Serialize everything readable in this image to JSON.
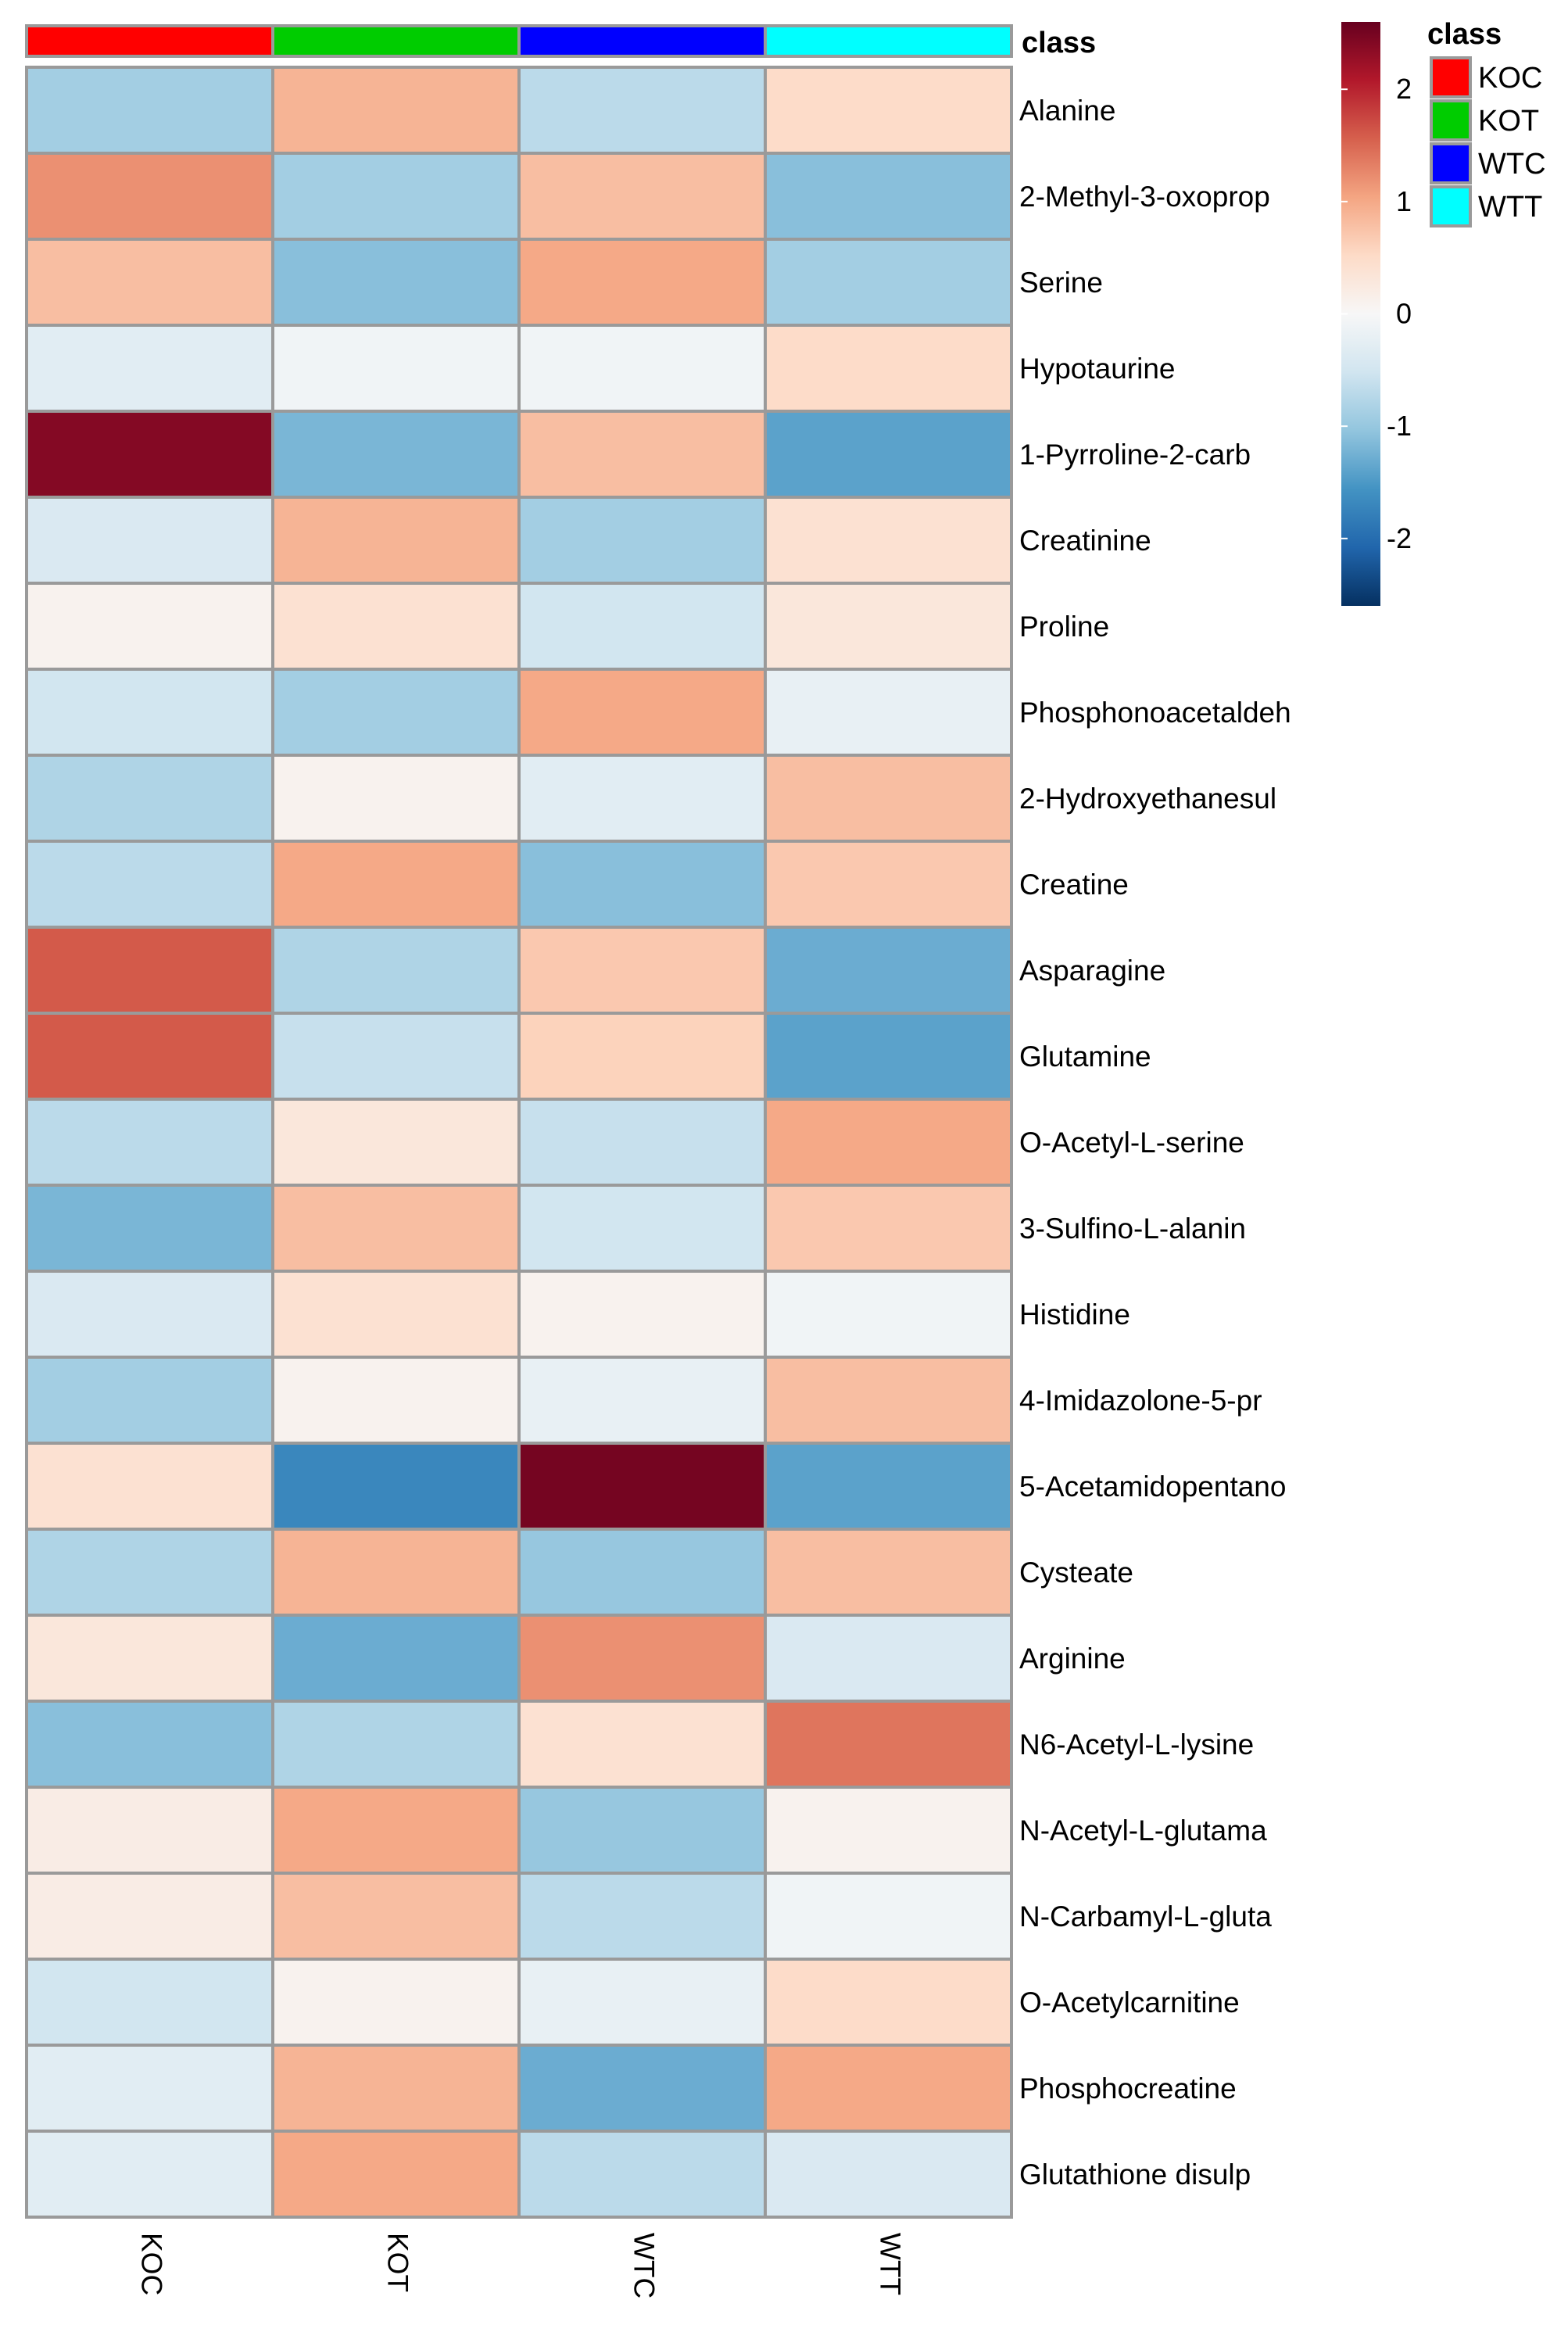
{
  "chart_data": {
    "type": "heatmap",
    "title": "",
    "columns": [
      "KOC",
      "KOT",
      "WTC",
      "WTT"
    ],
    "column_class": [
      "KOC",
      "KOT",
      "WTC",
      "WTT"
    ],
    "class_annotation_label": "class",
    "rows": [
      "Alanine",
      "2-Methyl-3-oxoprop",
      "Serine",
      "Hypotaurine",
      "1-Pyrroline-2-carb",
      "Creatinine",
      "Proline",
      "Phosphonoacetaldeh",
      "2-Hydroxyethanesul",
      "Creatine",
      "Asparagine",
      "Glutamine",
      "O-Acetyl-L-serine",
      "3-Sulfino-L-alanin",
      "Histidine",
      "4-Imidazolone-5-pr",
      "5-Acetamidopentano",
      "Cysteate",
      "Arginine",
      "N6-Acetyl-L-lysine",
      "N-Acetyl-L-glutama",
      "N-Carbamyl-L-gluta",
      "O-Acetylcarnitine",
      "Phosphocreatine",
      "Glutathione disulp"
    ],
    "values": [
      [
        -0.9,
        0.9,
        -0.7,
        0.5
      ],
      [
        1.2,
        -0.9,
        0.8,
        -1.1
      ],
      [
        0.8,
        -1.1,
        1.0,
        -0.9
      ],
      [
        -0.3,
        -0.1,
        -0.1,
        0.5
      ],
      [
        2.4,
        -1.2,
        0.8,
        -1.4
      ],
      [
        -0.4,
        0.9,
        -0.9,
        0.4
      ],
      [
        0.1,
        0.4,
        -0.5,
        0.3
      ],
      [
        -0.5,
        -0.9,
        1.0,
        -0.2
      ],
      [
        -0.8,
        0.1,
        -0.3,
        0.8
      ],
      [
        -0.7,
        1.0,
        -1.1,
        0.7
      ],
      [
        1.6,
        -0.8,
        0.7,
        -1.3
      ],
      [
        1.6,
        -0.6,
        0.6,
        -1.4
      ],
      [
        -0.7,
        0.3,
        -0.6,
        1.0
      ],
      [
        -1.2,
        0.8,
        -0.5,
        0.7
      ],
      [
        -0.4,
        0.4,
        0.1,
        -0.1
      ],
      [
        -0.9,
        0.1,
        -0.2,
        0.8
      ],
      [
        0.4,
        -1.7,
        2.5,
        -1.4
      ],
      [
        -0.8,
        0.9,
        -1.0,
        0.8
      ],
      [
        0.3,
        -1.3,
        1.2,
        -0.4
      ],
      [
        -1.1,
        -0.8,
        0.4,
        1.4
      ],
      [
        0.2,
        1.0,
        -1.0,
        0.1
      ],
      [
        0.2,
        0.8,
        -0.7,
        -0.1
      ],
      [
        -0.5,
        0.1,
        -0.2,
        0.5
      ],
      [
        -0.3,
        0.9,
        -1.3,
        1.0
      ],
      [
        -0.3,
        1.0,
        -0.7,
        -0.4
      ]
    ],
    "colorbar": {
      "ticks": [
        2,
        1,
        0,
        -1,
        -2
      ],
      "tick_labels": [
        "2",
        "1",
        "0",
        "-1",
        "-2"
      ],
      "range": [
        -2.6,
        2.6
      ],
      "colors": [
        "#053061",
        "#2166ac",
        "#4393c3",
        "#92c5de",
        "#d1e5f0",
        "#f7f7f7",
        "#fddbc7",
        "#f4a582",
        "#d6604d",
        "#b2182b",
        "#67001f"
      ]
    },
    "legend": {
      "title": "class",
      "placement": "top-right",
      "items": [
        {
          "label": "KOC",
          "color": "#ff0000"
        },
        {
          "label": "KOT",
          "color": "#00cc00"
        },
        {
          "label": "WTC",
          "color": "#0000ff"
        },
        {
          "label": "WTT",
          "color": "#00ffff"
        }
      ]
    }
  }
}
